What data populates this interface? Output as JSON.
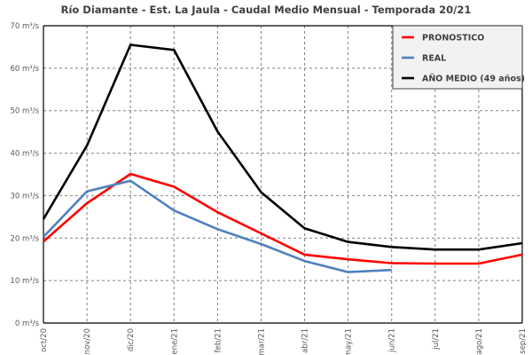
{
  "chart_data": {
    "type": "line",
    "title": "Río Diamante - Est. La Jaula - Caudal Medio Mensual - Temporada 20/21",
    "xlabel": "",
    "ylabel": "",
    "categories": [
      "oct/20",
      "nov/20",
      "dic/20",
      "ene/21",
      "feb/21",
      "mar/21",
      "abr/21",
      "may/21",
      "jun/21",
      "jul/21",
      "ago/21",
      "sep/21"
    ],
    "ylim": [
      0,
      70
    ],
    "yticks": [
      0,
      10,
      20,
      30,
      40,
      50,
      60,
      70
    ],
    "ytick_labels": [
      "0 m³/s",
      "10 m³/s",
      "20 m³/s",
      "30 m³/s",
      "40 m³/s",
      "50 m³/s",
      "60 m³/s",
      "70 m³/s"
    ],
    "grid": true,
    "legend_position": "top-right",
    "series": [
      {
        "name": "PRONOSTICO",
        "color": "#ff0000",
        "values": [
          19.2,
          28.2,
          35.1,
          32.1,
          26.1,
          21.1,
          16.1,
          15.0,
          14.1,
          14.0,
          14.0,
          16.1
        ]
      },
      {
        "name": "REAL",
        "color": "#4f81bd",
        "values": [
          20.3,
          31.0,
          33.5,
          26.5,
          22.1,
          18.6,
          14.6,
          12.0,
          12.5,
          null,
          null,
          null
        ]
      },
      {
        "name": "AÑO MEDIO (49 años)",
        "color": "#000000",
        "values": [
          24.5,
          41.8,
          65.5,
          64.3,
          45.1,
          30.8,
          22.3,
          19.1,
          17.9,
          17.3,
          17.3,
          18.8
        ]
      }
    ]
  }
}
